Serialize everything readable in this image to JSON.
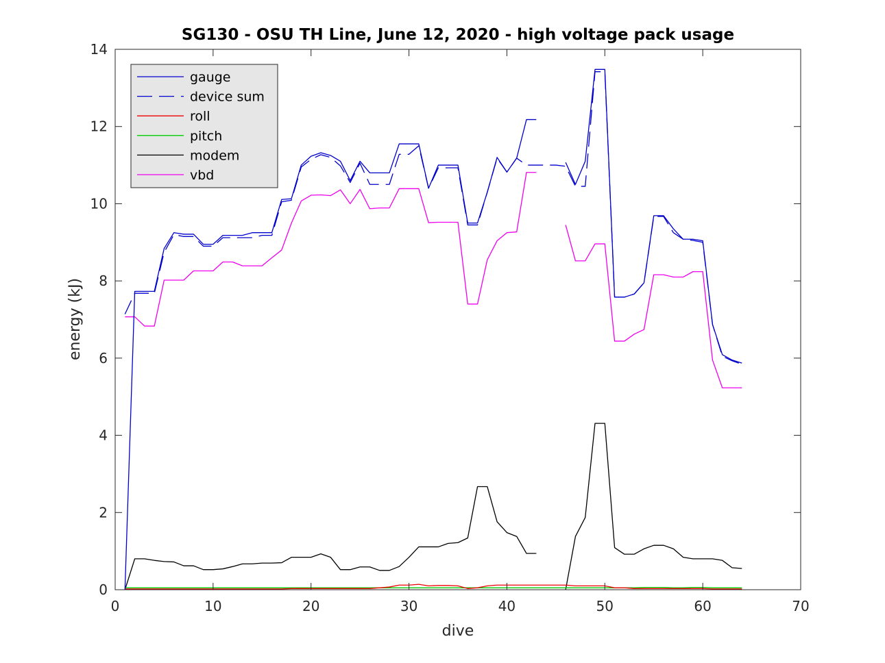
{
  "chart_data": {
    "type": "line",
    "title": "SG130 - OSU TH Line, June 12, 2020 - high voltage pack usage",
    "xlabel": "dive",
    "ylabel": "energy (kJ)",
    "xlim": [
      0,
      70
    ],
    "ylim": [
      0,
      14
    ],
    "xticks": [
      0,
      10,
      20,
      30,
      40,
      50,
      60,
      70
    ],
    "yticks": [
      0,
      2,
      4,
      6,
      8,
      10,
      12,
      14
    ],
    "grid": false,
    "legend_position": "top-left",
    "x": [
      1,
      2,
      3,
      4,
      5,
      6,
      7,
      8,
      9,
      10,
      11,
      12,
      13,
      14,
      15,
      16,
      17,
      18,
      19,
      20,
      21,
      22,
      23,
      24,
      25,
      26,
      27,
      28,
      29,
      30,
      31,
      32,
      33,
      34,
      35,
      36,
      37,
      38,
      39,
      40,
      41,
      42,
      43,
      44,
      45,
      46,
      47,
      48,
      49,
      50,
      51,
      52,
      53,
      54,
      55,
      56,
      57,
      58,
      59,
      60,
      61,
      62,
      63,
      64
    ],
    "series": [
      {
        "name": "gauge",
        "color": "#0000cc",
        "dash": "solid",
        "values": [
          0.0,
          7.73,
          7.73,
          7.73,
          8.84,
          9.25,
          9.21,
          9.21,
          8.95,
          8.95,
          9.18,
          9.18,
          9.18,
          9.25,
          9.25,
          9.25,
          10.11,
          10.13,
          11.0,
          11.23,
          11.32,
          11.25,
          11.1,
          10.6,
          11.1,
          10.8,
          10.8,
          10.8,
          11.55,
          11.55,
          11.55,
          10.4,
          11.0,
          11.0,
          11.0,
          9.5,
          9.5,
          10.3,
          11.2,
          10.82,
          11.18,
          12.18,
          12.18,
          null,
          null,
          11.07,
          10.5,
          11.1,
          13.48,
          13.48,
          7.58,
          7.58,
          7.66,
          7.95,
          9.69,
          9.69,
          9.35,
          9.08,
          9.08,
          9.04,
          6.87,
          6.09,
          5.95,
          5.87
        ]
      },
      {
        "name": "device sum",
        "color": "#0000cc",
        "dash": "dashed",
        "values": [
          7.14,
          7.68,
          7.68,
          7.68,
          8.74,
          9.2,
          9.15,
          9.15,
          8.9,
          8.9,
          9.12,
          9.12,
          9.12,
          9.12,
          9.18,
          9.18,
          10.05,
          10.09,
          10.95,
          11.15,
          11.27,
          11.2,
          10.98,
          10.55,
          11.05,
          10.5,
          10.5,
          10.5,
          11.28,
          11.28,
          11.5,
          10.4,
          10.93,
          10.93,
          10.93,
          9.45,
          9.45,
          10.3,
          11.18,
          10.82,
          11.18,
          11.0,
          11.0,
          11.0,
          11.0,
          10.97,
          10.45,
          10.45,
          13.42,
          13.42,
          7.58,
          7.58,
          7.66,
          7.95,
          9.67,
          9.67,
          9.25,
          9.08,
          9.05,
          9.0,
          6.87,
          6.05,
          5.93,
          5.84
        ]
      },
      {
        "name": "roll",
        "color": "#ee0000",
        "dash": "solid",
        "values": [
          0.02,
          0.02,
          0.02,
          0.02,
          0.02,
          0.02,
          0.02,
          0.02,
          0.02,
          0.02,
          0.02,
          0.02,
          0.02,
          0.02,
          0.02,
          0.02,
          0.02,
          0.03,
          0.03,
          0.03,
          0.03,
          0.03,
          0.03,
          0.03,
          0.03,
          0.03,
          0.05,
          0.07,
          0.12,
          0.12,
          0.14,
          0.1,
          0.11,
          0.11,
          0.1,
          0.03,
          0.05,
          0.1,
          0.12,
          0.12,
          0.12,
          0.12,
          0.12,
          0.12,
          0.12,
          0.12,
          0.1,
          0.1,
          0.1,
          0.1,
          0.05,
          0.05,
          0.03,
          0.03,
          0.03,
          0.03,
          0.03,
          0.03,
          0.03,
          0.03,
          0.02,
          0.02,
          0.02,
          0.02
        ]
      },
      {
        "name": "pitch",
        "color": "#00cc00",
        "dash": "solid",
        "values": [
          0.05,
          0.05,
          0.05,
          0.05,
          0.05,
          0.05,
          0.05,
          0.05,
          0.05,
          0.05,
          0.05,
          0.05,
          0.05,
          0.05,
          0.05,
          0.05,
          0.05,
          0.05,
          0.05,
          0.05,
          0.05,
          0.05,
          0.05,
          0.05,
          0.05,
          0.05,
          0.05,
          0.05,
          0.05,
          0.05,
          0.05,
          0.05,
          0.05,
          0.05,
          0.05,
          0.05,
          0.05,
          0.05,
          0.05,
          0.05,
          0.05,
          0.05,
          0.05,
          0.05,
          0.05,
          0.05,
          0.05,
          0.05,
          0.05,
          0.05,
          0.05,
          0.05,
          0.05,
          0.06,
          0.06,
          0.06,
          0.05,
          0.05,
          0.06,
          0.06,
          0.05,
          0.05,
          0.05,
          0.05
        ]
      },
      {
        "name": "modem",
        "color": "#000000",
        "dash": "solid",
        "values": [
          0.0,
          0.8,
          0.8,
          0.76,
          0.73,
          0.72,
          0.62,
          0.62,
          0.52,
          0.52,
          0.54,
          0.6,
          0.67,
          0.67,
          0.69,
          0.69,
          0.7,
          0.84,
          0.84,
          0.84,
          0.93,
          0.84,
          0.52,
          0.52,
          0.59,
          0.59,
          0.5,
          0.5,
          0.6,
          0.84,
          1.11,
          1.11,
          1.11,
          1.2,
          1.22,
          1.34,
          2.67,
          2.67,
          1.76,
          1.48,
          1.38,
          0.94,
          0.94,
          null,
          null,
          0.0,
          1.38,
          1.87,
          4.31,
          4.31,
          1.09,
          0.92,
          0.92,
          1.06,
          1.15,
          1.15,
          1.06,
          0.84,
          0.8,
          0.8,
          0.8,
          0.76,
          0.57,
          0.55
        ]
      },
      {
        "name": "vbd",
        "color": "#ee00ee",
        "dash": "solid",
        "values": [
          7.07,
          7.07,
          6.83,
          6.83,
          8.02,
          8.02,
          8.02,
          8.26,
          8.26,
          8.26,
          8.49,
          8.49,
          8.39,
          8.39,
          8.39,
          8.6,
          8.8,
          9.5,
          10.07,
          10.22,
          10.23,
          10.21,
          10.36,
          10.0,
          10.37,
          9.87,
          9.89,
          9.89,
          10.39,
          10.39,
          10.39,
          9.51,
          9.52,
          9.52,
          9.52,
          7.4,
          7.4,
          8.55,
          9.04,
          9.25,
          9.27,
          10.81,
          10.81,
          null,
          null,
          9.45,
          8.52,
          8.52,
          8.96,
          8.96,
          6.44,
          6.44,
          6.62,
          6.74,
          8.16,
          8.16,
          8.1,
          8.1,
          8.24,
          8.24,
          5.95,
          5.23,
          5.23,
          5.23
        ]
      }
    ]
  }
}
